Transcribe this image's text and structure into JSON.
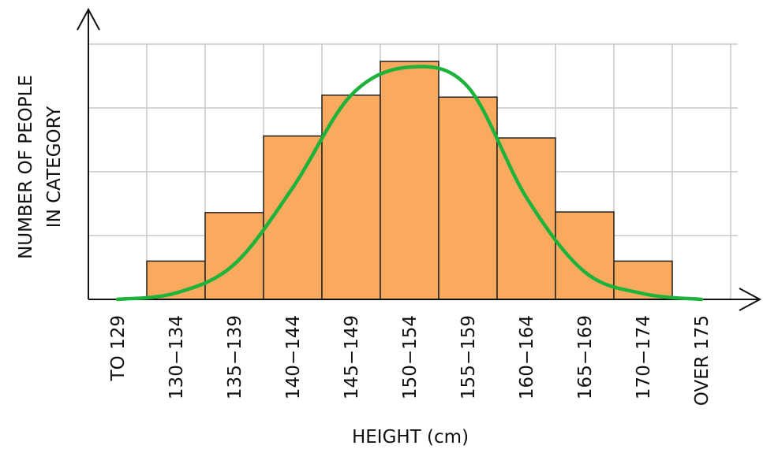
{
  "chart_data": {
    "type": "histogram",
    "x_label": "HEIGHT (cm)",
    "y_label": [
      "NUMBER OF PEOPLE",
      "IN CATEGORY"
    ],
    "categories": [
      "TO 129",
      "130−134",
      "135−139",
      "140−144",
      "145−149",
      "150−154",
      "155−159",
      "160−164",
      "165−169",
      "170−174",
      "OVER 175"
    ],
    "values": [
      0,
      0.6,
      1.36,
      2.56,
      3.2,
      3.73,
      3.17,
      2.53,
      1.37,
      0.6,
      0
    ],
    "color": "#f9aa5f",
    "curve": {
      "color": "#1db33a",
      "values": [
        0,
        0.1,
        0.55,
        1.75,
        3.2,
        3.64,
        3.33,
        1.6,
        0.43,
        0.09,
        0
      ]
    },
    "ylim": [
      0,
      4.5
    ],
    "yticks": [
      0,
      1,
      2,
      3,
      4
    ],
    "grid": true
  }
}
